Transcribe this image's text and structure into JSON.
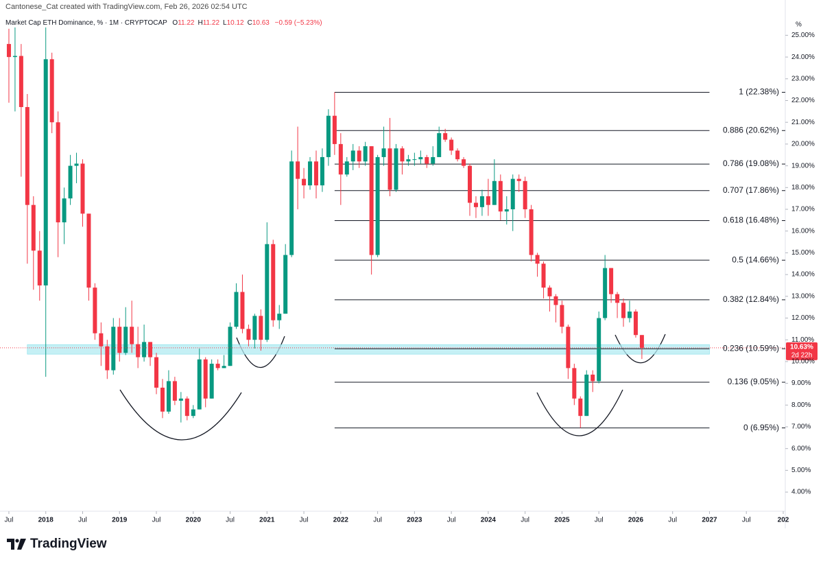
{
  "header": {
    "attribution": "Cantonese_Cat created with TradingView.com, Feb 26, 2026 02:54 UTC",
    "symbol": "Market Cap ETH Dominance, % · 1M · CRYPTOCAP",
    "ohlc": [
      {
        "key": "O",
        "value": "11.22"
      },
      {
        "key": "H",
        "value": "11.22"
      },
      {
        "key": "L",
        "value": "10.12"
      },
      {
        "key": "C",
        "value": "10.63"
      }
    ],
    "change": "−0.59 (−5.23%)"
  },
  "footer": {
    "brand": "TradingView"
  },
  "chart_data": {
    "type": "candlestick",
    "up_color": "#089981",
    "down_color": "#f23645",
    "x": [
      "2017-07",
      "2017-08",
      "2017-09",
      "2017-10",
      "2017-11",
      "2017-12",
      "2018-01",
      "2018-02",
      "2018-03",
      "2018-04",
      "2018-05",
      "2018-06",
      "2018-07",
      "2018-08",
      "2018-09",
      "2018-10",
      "2018-11",
      "2018-12",
      "2019-01",
      "2019-02",
      "2019-03",
      "2019-04",
      "2019-05",
      "2019-06",
      "2019-07",
      "2019-08",
      "2019-09",
      "2019-10",
      "2019-11",
      "2019-12",
      "2020-01",
      "2020-02",
      "2020-03",
      "2020-04",
      "2020-05",
      "2020-06",
      "2020-07",
      "2020-08",
      "2020-09",
      "2020-10",
      "2020-11",
      "2020-12",
      "2021-01",
      "2021-02",
      "2021-03",
      "2021-04",
      "2021-05",
      "2021-06",
      "2021-07",
      "2021-08",
      "2021-09",
      "2021-10",
      "2021-11",
      "2021-12",
      "2022-01",
      "2022-02",
      "2022-03",
      "2022-04",
      "2022-05",
      "2022-06",
      "2022-07",
      "2022-08",
      "2022-09",
      "2022-10",
      "2022-11",
      "2022-12",
      "2023-01",
      "2023-02",
      "2023-03",
      "2023-04",
      "2023-05",
      "2023-06",
      "2023-07",
      "2023-08",
      "2023-09",
      "2023-10",
      "2023-11",
      "2023-12",
      "2024-01",
      "2024-02",
      "2024-03",
      "2024-04",
      "2024-05",
      "2024-06",
      "2024-07",
      "2024-08",
      "2024-09",
      "2024-10",
      "2024-11",
      "2024-12",
      "2025-01",
      "2025-02",
      "2025-03",
      "2025-04",
      "2025-05",
      "2025-06",
      "2025-07",
      "2025-08",
      "2025-09",
      "2025-10",
      "2025-11",
      "2025-12",
      "2026-01",
      "2026-02"
    ],
    "open": [
      24.6,
      24.0,
      24.05,
      21.7,
      17.2,
      15.1,
      13.5,
      23.9,
      21.0,
      16.4,
      17.5,
      19.0,
      19.1,
      16.8,
      13.4,
      11.3,
      10.7,
      9.6,
      11.6,
      10.4,
      11.6,
      10.8,
      10.2,
      10.9,
      10.2,
      8.8,
      7.7,
      9.1,
      8.2,
      8.3,
      7.5,
      7.8,
      10.1,
      8.3,
      9.9,
      9.7,
      9.8,
      11.6,
      13.2,
      11.5,
      11.0,
      12.1,
      11.0,
      15.4,
      11.9,
      12.2,
      14.9,
      19.2,
      18.4,
      18.1,
      19.2,
      18.1,
      19.4,
      21.3,
      20.0,
      18.6,
      19.2,
      19.7,
      19.2,
      19.9,
      14.9,
      19.4,
      19.8,
      17.9,
      19.8,
      19.2,
      19.3,
      19.3,
      19.4,
      19.1,
      19.4,
      20.5,
      20.2,
      19.7,
      19.3,
      19.0,
      17.3,
      17.1,
      17.6,
      17.2,
      18.3,
      16.9,
      17.0,
      18.4,
      18.3,
      17.0,
      14.9,
      14.5,
      13.4,
      13.0,
      12.6,
      11.6,
      9.7,
      8.3,
      7.5,
      9.4,
      9.1,
      12.0,
      14.3,
      13.1,
      12.7,
      12.0,
      12.3,
      11.22
    ],
    "high": [
      25.3,
      26.8,
      24.6,
      22.3,
      17.6,
      16.0,
      25.8,
      24.2,
      21.5,
      18.0,
      19.5,
      19.6,
      19.3,
      16.8,
      13.6,
      11.8,
      11.0,
      12.0,
      12.0,
      12.5,
      12.8,
      11.6,
      11.7,
      10.9,
      10.4,
      9.2,
      9.6,
      9.3,
      8.6,
      8.4,
      8.0,
      10.6,
      10.2,
      10.1,
      10.1,
      10.3,
      11.8,
      13.6,
      14.0,
      11.7,
      12.2,
      12.4,
      16.4,
      15.6,
      12.6,
      15.4,
      19.7,
      20.8,
      18.9,
      19.4,
      19.7,
      19.8,
      21.6,
      22.38,
      20.5,
      19.4,
      20.0,
      19.9,
      20.1,
      19.9,
      19.5,
      20.8,
      21.2,
      20.0,
      19.9,
      19.5,
      19.6,
      19.7,
      19.5,
      19.9,
      20.8,
      20.7,
      20.3,
      19.8,
      19.4,
      19.1,
      17.6,
      17.9,
      18.4,
      19.3,
      18.6,
      17.6,
      18.6,
      18.6,
      18.5,
      17.2,
      15.0,
      14.6,
      13.5,
      13.1,
      12.8,
      11.7,
      9.9,
      8.4,
      9.6,
      9.6,
      12.3,
      14.9,
      14.3,
      13.2,
      12.9,
      12.8,
      12.4,
      11.22
    ],
    "low": [
      21.9,
      21.5,
      18.5,
      14.5,
      13.3,
      12.8,
      9.3,
      20.5,
      14.8,
      15.4,
      17.2,
      18.2,
      16.2,
      12.8,
      11.0,
      9.8,
      9.2,
      9.4,
      10.0,
      10.3,
      10.4,
      9.7,
      10.0,
      9.8,
      8.5,
      7.4,
      7.6,
      8.0,
      7.2,
      7.3,
      7.4,
      7.8,
      7.9,
      8.3,
      9.6,
      9.7,
      9.8,
      11.5,
      11.3,
      10.7,
      10.6,
      10.5,
      10.9,
      11.6,
      11.5,
      12.2,
      14.8,
      17.0,
      17.5,
      17.9,
      17.5,
      17.8,
      19.0,
      19.5,
      17.2,
      18.5,
      18.8,
      18.9,
      19.0,
      14.0,
      14.8,
      19.0,
      17.6,
      17.8,
      18.6,
      19.0,
      19.0,
      19.1,
      18.9,
      19.0,
      19.4,
      20.1,
      19.5,
      19.2,
      18.9,
      16.7,
      16.6,
      16.7,
      16.7,
      17.2,
      16.5,
      16.3,
      16.0,
      17.8,
      16.6,
      14.6,
      13.9,
      12.9,
      12.3,
      11.8,
      11.3,
      9.2,
      8.0,
      6.95,
      7.5,
      8.6,
      9.0,
      11.9,
      12.7,
      12.0,
      11.6,
      11.8,
      11.1,
      10.12
    ],
    "close": [
      24.0,
      24.05,
      21.7,
      17.2,
      15.1,
      13.5,
      23.9,
      21.0,
      16.4,
      17.5,
      19.0,
      19.1,
      16.8,
      13.4,
      11.3,
      10.7,
      9.6,
      11.6,
      10.4,
      11.6,
      10.8,
      10.2,
      10.9,
      10.2,
      8.8,
      7.7,
      9.1,
      8.2,
      8.3,
      7.5,
      7.8,
      10.1,
      8.3,
      9.9,
      9.7,
      9.8,
      11.6,
      13.2,
      11.5,
      11.0,
      12.1,
      11.0,
      15.4,
      11.9,
      12.2,
      14.9,
      19.2,
      18.4,
      18.1,
      19.2,
      18.1,
      19.4,
      21.3,
      20.0,
      18.6,
      19.2,
      19.7,
      19.2,
      19.9,
      14.9,
      19.4,
      19.8,
      17.9,
      19.8,
      19.2,
      19.3,
      19.3,
      19.4,
      19.1,
      19.4,
      20.5,
      20.2,
      19.7,
      19.3,
      19.0,
      17.3,
      17.1,
      17.6,
      17.2,
      18.3,
      16.9,
      17.0,
      18.4,
      18.3,
      17.0,
      14.9,
      14.5,
      13.4,
      13.0,
      12.6,
      11.6,
      9.7,
      8.3,
      7.5,
      9.4,
      9.1,
      12.0,
      14.3,
      13.1,
      12.7,
      12.0,
      12.3,
      11.22,
      10.63
    ],
    "xlim": [
      "2017-06",
      "2028-01"
    ],
    "xticks": [
      {
        "value": "2017-07",
        "label": "Jul"
      },
      {
        "value": "2018-01",
        "label": "2018"
      },
      {
        "value": "2018-07",
        "label": "Jul"
      },
      {
        "value": "2019-01",
        "label": "2019"
      },
      {
        "value": "2019-07",
        "label": "Jul"
      },
      {
        "value": "2020-01",
        "label": "2020"
      },
      {
        "value": "2020-07",
        "label": "Jul"
      },
      {
        "value": "2021-01",
        "label": "2021"
      },
      {
        "value": "2021-07",
        "label": "Jul"
      },
      {
        "value": "2022-01",
        "label": "2022"
      },
      {
        "value": "2022-07",
        "label": "Jul"
      },
      {
        "value": "2023-01",
        "label": "2023"
      },
      {
        "value": "2023-07",
        "label": "Jul"
      },
      {
        "value": "2024-01",
        "label": "2024"
      },
      {
        "value": "2024-07",
        "label": "Jul"
      },
      {
        "value": "2025-01",
        "label": "2025"
      },
      {
        "value": "2025-07",
        "label": "Jul"
      },
      {
        "value": "2026-01",
        "label": "2026"
      },
      {
        "value": "2026-07",
        "label": "Jul"
      },
      {
        "value": "2027-01",
        "label": "2027"
      },
      {
        "value": "2027-07",
        "label": "Jul"
      },
      {
        "value": "2028-01",
        "label": "202"
      }
    ],
    "ylim": [
      3.12,
      25.36
    ],
    "y_unit": "%",
    "yticks": [
      {
        "value": 4,
        "label": "4.00%"
      },
      {
        "value": 5,
        "label": "5.00%"
      },
      {
        "value": 6,
        "label": "6.00%"
      },
      {
        "value": 7,
        "label": "7.00%"
      },
      {
        "value": 8,
        "label": "8.00%"
      },
      {
        "value": 9,
        "label": "9.00%"
      },
      {
        "value": 10,
        "label": "10.00%"
      },
      {
        "value": 11,
        "label": "11.00%"
      },
      {
        "value": 12,
        "label": "12.00%"
      },
      {
        "value": 13,
        "label": "13.00%"
      },
      {
        "value": 14,
        "label": "14.00%"
      },
      {
        "value": 15,
        "label": "15.00%"
      },
      {
        "value": 16,
        "label": "16.00%"
      },
      {
        "value": 17,
        "label": "17.00%"
      },
      {
        "value": 18,
        "label": "18.00%"
      },
      {
        "value": 19,
        "label": "19.00%"
      },
      {
        "value": 20,
        "label": "20.00%"
      },
      {
        "value": 21,
        "label": "21.00%"
      },
      {
        "value": 22,
        "label": "22.00%"
      },
      {
        "value": 23,
        "label": "23.00%"
      },
      {
        "value": 24,
        "label": "24.00%"
      },
      {
        "value": 25,
        "label": "25.00%"
      }
    ],
    "grid": false,
    "fib_from": "2021-12",
    "fib_to": "2027-01",
    "fib_levels": [
      {
        "value": 22.38,
        "label": "1 (22.38%)"
      },
      {
        "value": 20.62,
        "label": "0.886 (20.62%)"
      },
      {
        "value": 19.08,
        "label": "0.786 (19.08%)"
      },
      {
        "value": 17.86,
        "label": "0.707 (17.86%)"
      },
      {
        "value": 16.48,
        "label": "0.618 (16.48%)"
      },
      {
        "value": 14.66,
        "label": "0.5 (14.66%)"
      },
      {
        "value": 12.84,
        "label": "0.382 (12.84%)"
      },
      {
        "value": 10.59,
        "label": "0.236 (10.59%)"
      },
      {
        "value": 9.05,
        "label": "0.136 (9.05%)"
      },
      {
        "value": 6.95,
        "label": "0 (6.95%)"
      }
    ],
    "zone": {
      "from": "2017-10",
      "to": "2027-01",
      "low": 10.34,
      "high": 10.78
    },
    "last_price": {
      "label": "10.63%",
      "countdown": "2d 22h"
    }
  }
}
